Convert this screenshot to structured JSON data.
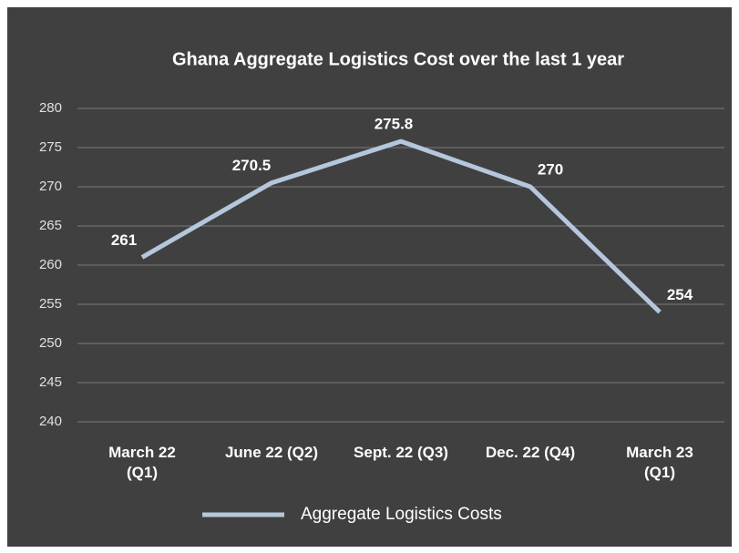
{
  "chart_data": {
    "type": "line",
    "title": "Ghana Aggregate Logistics Cost over the last 1 year",
    "categories": [
      "March 22 (Q1)",
      "June 22 (Q2)",
      "Sept. 22 (Q3)",
      "Dec. 22 (Q4)",
      "March 23 (Q1)"
    ],
    "series": [
      {
        "name": "Aggregate Logistics Costs",
        "color": "#b4c7dc",
        "values": [
          261,
          270.5,
          275.8,
          270,
          254
        ]
      }
    ],
    "ylim": [
      240,
      280
    ],
    "yticks": [
      240,
      245,
      250,
      255,
      260,
      265,
      270,
      275,
      280
    ],
    "grid": true
  }
}
